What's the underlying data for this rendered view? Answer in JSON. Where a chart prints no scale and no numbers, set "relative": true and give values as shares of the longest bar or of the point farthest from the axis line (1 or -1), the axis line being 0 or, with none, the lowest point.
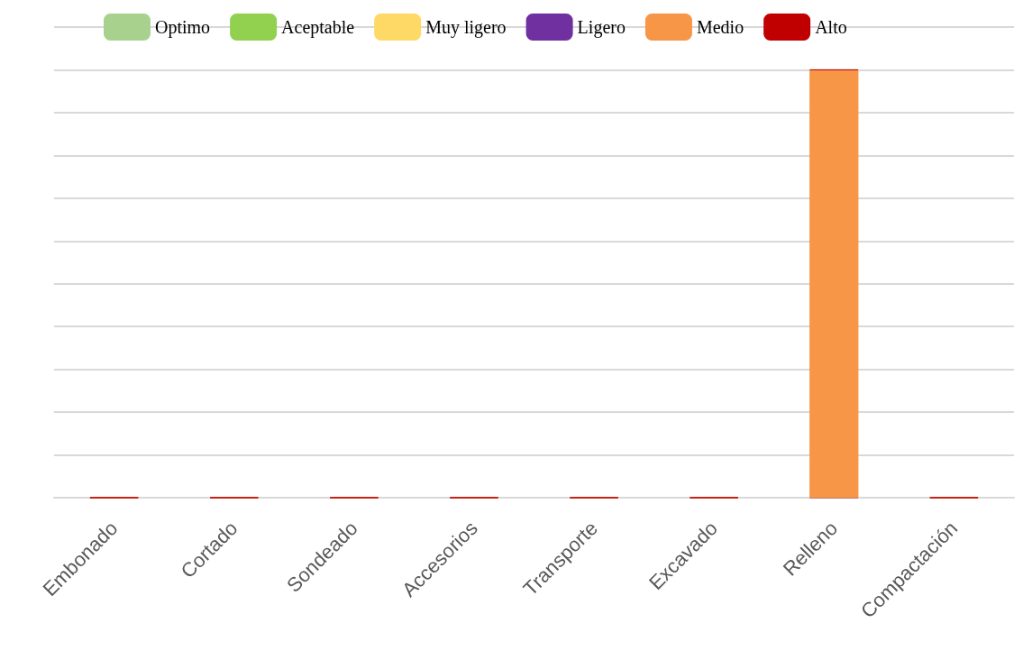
{
  "chart_data": {
    "type": "bar",
    "relative": true,
    "stacked": true,
    "grid": "y",
    "legend": "top left",
    "categories": [
      "Embonado",
      "Cortado",
      "Sondeado",
      "Accesorios",
      "Transporte",
      "Excavado",
      "Relleno",
      "Compactación"
    ],
    "series": [
      {
        "name": "Optimo",
        "color": "#a9d18e",
        "values": [
          0,
          0,
          0,
          0,
          0,
          0,
          0,
          0
        ]
      },
      {
        "name": "Aceptable",
        "color": "#92d050",
        "values": [
          0,
          0,
          0,
          0,
          0,
          0,
          0,
          0
        ]
      },
      {
        "name": "Muy ligero",
        "color": "#ffd966",
        "values": [
          0,
          0,
          0,
          0,
          0,
          0,
          0,
          0
        ]
      },
      {
        "name": "Ligero",
        "color": "#7030a0",
        "values": [
          0,
          0,
          0,
          0,
          0,
          0,
          0,
          0
        ]
      },
      {
        "name": "Medio",
        "color": "#f79646",
        "values": [
          0,
          0,
          0,
          0,
          0,
          0,
          1,
          0
        ]
      },
      {
        "name": "Alto",
        "color": "#c00000",
        "values": [
          0,
          0,
          0,
          0,
          0,
          0,
          0,
          0
        ]
      }
    ]
  }
}
